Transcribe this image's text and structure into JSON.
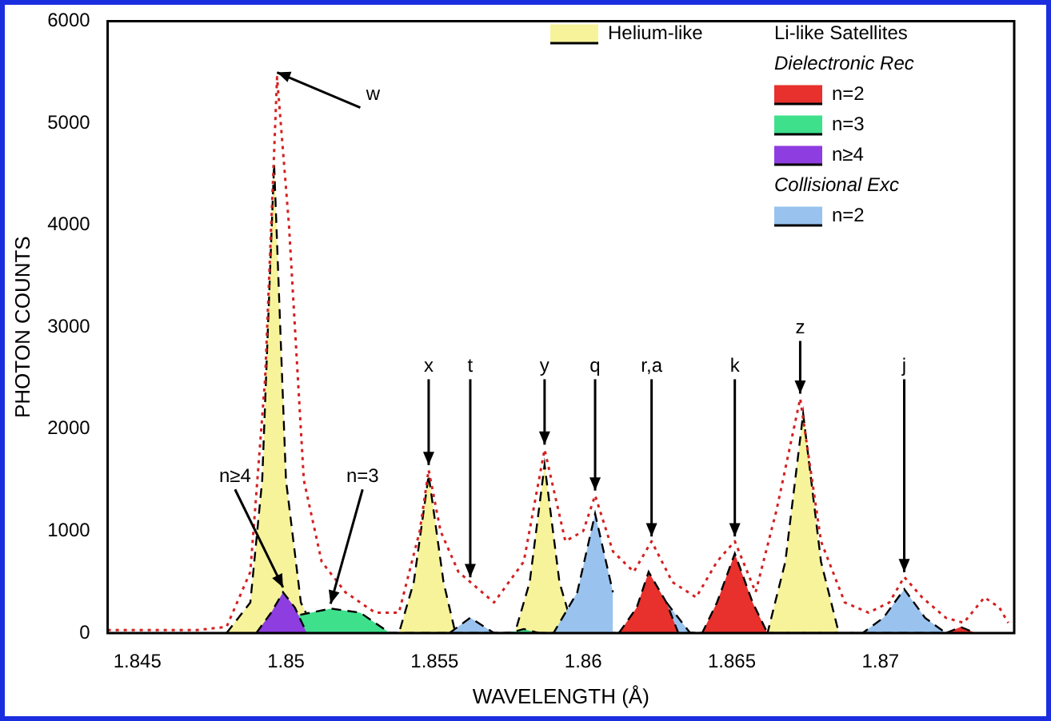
{
  "chart_data": {
    "type": "area",
    "xlabel": "WAVELENGTH (Å)",
    "ylabel": "PHOTON COUNTS",
    "xlim": [
      1.844,
      1.8745
    ],
    "xticks": [
      1.845,
      1.85,
      1.855,
      1.86,
      1.865,
      1.87
    ],
    "ylim": [
      0,
      6000
    ],
    "yticks": [
      0,
      1000,
      2000,
      3000,
      4000,
      5000,
      6000
    ],
    "legend": "top right",
    "legend_title": "Li-like Satellites",
    "line_style": "dashed",
    "series": [
      {
        "name": "Helium-like",
        "color": "#f7f39a",
        "x": [
          1.848,
          1.8488,
          1.8492,
          1.8496,
          1.85,
          1.8505,
          1.851,
          1.8538,
          1.8543,
          1.8548,
          1.8553,
          1.8557,
          1.8577,
          1.8582,
          1.8587,
          1.8592,
          1.8597,
          1.8662,
          1.8668,
          1.8674,
          1.868,
          1.8686
        ],
        "values": [
          0,
          300,
          1500,
          4600,
          1500,
          300,
          0,
          0,
          500,
          1550,
          500,
          0,
          0,
          500,
          1650,
          500,
          0,
          0,
          700,
          2150,
          700,
          0
        ]
      },
      {
        "name": "n=2",
        "color": "#99c3ee",
        "x": [
          1.8555,
          1.8562,
          1.857,
          1.859,
          1.8598,
          1.8604,
          1.861,
          1.8617,
          1.8628,
          1.8636,
          1.8694,
          1.8701,
          1.8708,
          1.8715,
          1.8722
        ],
        "values": [
          0,
          150,
          0,
          0,
          400,
          1170,
          400,
          null,
          300,
          0,
          0,
          150,
          430,
          150,
          0
        ]
      },
      {
        "name": "n=2",
        "color": "#e8302c",
        "x": [
          1.8612,
          1.8618,
          1.8622,
          1.8628,
          1.8632,
          1.864,
          1.8645,
          1.8651,
          1.8657,
          1.8662,
          1.8722,
          1.8727,
          1.8732
        ],
        "values": [
          0,
          250,
          600,
          300,
          0,
          0,
          300,
          780,
          300,
          0,
          0,
          60,
          0
        ]
      },
      {
        "name": "n=3",
        "color": "#3fe08c",
        "x": [
          1.849,
          1.85,
          1.8515,
          1.8525,
          1.8535,
          1.8575,
          1.858,
          1.8585
        ],
        "values": [
          0,
          150,
          240,
          200,
          0,
          0,
          40,
          0
        ]
      },
      {
        "name": "n≥4",
        "color": "#8e3de0",
        "x": [
          1.849,
          1.8495,
          1.8499,
          1.8503,
          1.8507
        ],
        "values": [
          0,
          200,
          400,
          250,
          0
        ]
      },
      {
        "type": "line",
        "color": "#d42020",
        "line_style": "dotted",
        "x": [
          1.844,
          1.847,
          1.848,
          1.8488,
          1.8493,
          1.8497,
          1.8501,
          1.8506,
          1.8512,
          1.852,
          1.853,
          1.8538,
          1.8545,
          1.8548,
          1.8552,
          1.8558,
          1.8562,
          1.857,
          1.858,
          1.8587,
          1.8594,
          1.86,
          1.8604,
          1.861,
          1.8617,
          1.8623,
          1.863,
          1.8638,
          1.8645,
          1.8651,
          1.8658,
          1.8665,
          1.8673,
          1.868,
          1.8688,
          1.8696,
          1.8703,
          1.8708,
          1.8714,
          1.8722,
          1.8728,
          1.8735,
          1.874,
          1.8743
        ],
        "values": [
          30,
          30,
          60,
          600,
          2500,
          5450,
          4000,
          1500,
          700,
          400,
          200,
          200,
          1000,
          1600,
          1000,
          600,
          500,
          300,
          700,
          1800,
          900,
          1000,
          1350,
          800,
          600,
          900,
          500,
          350,
          700,
          900,
          400,
          1200,
          2300,
          900,
          300,
          200,
          300,
          550,
          350,
          150,
          100,
          350,
          250,
          100
        ]
      }
    ],
    "annotations": [
      "Dielectronic Rec",
      "Collisional Exc",
      {
        "text": "w",
        "x": 1.8497,
        "y": 5450
      },
      {
        "text": "n≥4",
        "x": 1.8499,
        "y": 400
      },
      {
        "text": "n=3",
        "x": 1.8515,
        "y": 240
      },
      {
        "text": "x",
        "x": 1.8548,
        "y": 1600
      },
      {
        "text": "t",
        "x": 1.8562,
        "y": 500
      },
      {
        "text": "y",
        "x": 1.8587,
        "y": 1800
      },
      {
        "text": "q",
        "x": 1.8604,
        "y": 1350
      },
      {
        "text": "r,a",
        "x": 1.8623,
        "y": 900
      },
      {
        "text": "k",
        "x": 1.8651,
        "y": 900
      },
      {
        "text": "z",
        "x": 1.8673,
        "y": 2300
      },
      {
        "text": "j",
        "x": 1.8708,
        "y": 550
      }
    ]
  }
}
